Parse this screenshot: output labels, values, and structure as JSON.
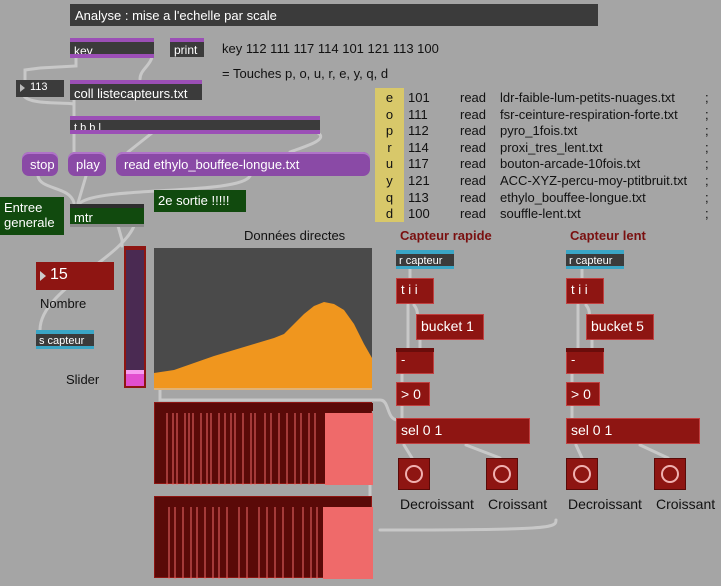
{
  "title": "Analyse : mise a l'echelle par scale",
  "objects": {
    "key": "key",
    "print": "print",
    "number113": "113",
    "coll": "coll listecapteurs.txt",
    "tbbl": "t b b l",
    "stop": "stop",
    "play": "play",
    "read": "read ethylo_bouffee-longue.txt",
    "mtr": "mtr",
    "number15": "15",
    "s_capteur": "s capteur",
    "r_capteur1": "r capteur",
    "r_capteur2": "r capteur",
    "tii1": "t i i",
    "tii2": "t i i",
    "bucket1": "bucket 1",
    "bucket5": "bucket 5",
    "minus1": "-",
    "minus2": "-",
    "gt1": "> 0",
    "gt2": "> 0",
    "sel1": "sel 0 1",
    "sel2": "sel 0 1"
  },
  "comments": {
    "key_codes": "key 112 111 117 114 101 121 113 100",
    "touches": "= Touches p, o, u, r, e, y, q, d",
    "entree_generale": "Entree generale",
    "deuxieme_sortie": "2e sortie !!!!!",
    "donnees_directes": "Données directes",
    "capteur_rapide": "Capteur rapide",
    "capteur_lent": "Capteur lent",
    "nombre": "Nombre",
    "slider": "Slider",
    "decroissant1": "Decroissant",
    "croissant1": "Croissant",
    "decroissant2": "Decroissant",
    "croissant2": "Croissant"
  },
  "keys_column": [
    "e",
    "o",
    "p",
    "r",
    "u",
    "y",
    "q",
    "d"
  ],
  "coll_list": [
    {
      "n": "101",
      "cmd": "read",
      "file": "ldr-faible-lum-petits-nuages.txt",
      "end": ";"
    },
    {
      "n": "111",
      "cmd": "read",
      "file": "fsr-ceinture-respiration-forte.txt",
      "end": ";"
    },
    {
      "n": "112",
      "cmd": "read",
      "file": "pyro_1fois.txt",
      "end": ";"
    },
    {
      "n": "114",
      "cmd": "read",
      "file": "proxi_tres_lent.txt",
      "end": ";"
    },
    {
      "n": "117",
      "cmd": "read",
      "file": "bouton-arcade-10fois.txt",
      "end": ";"
    },
    {
      "n": "121",
      "cmd": "read",
      "file": "ACC-XYZ-percu-moy-ptitbruit.txt",
      "end": ";"
    },
    {
      "n": "113",
      "cmd": "read",
      "file": "ethylo_bouffee-longue.txt",
      "end": ";"
    },
    {
      "n": "100",
      "cmd": "read",
      "file": "souffle-lent.txt",
      "end": ";"
    }
  ],
  "colors": {
    "background": "#a5a5a5",
    "object_red": "#8e1512",
    "message_purple": "#8a4aa6",
    "plot_fill": "#f0961e",
    "plot_bg": "#4a4a4a",
    "key_col_bg": "#d8c86a"
  },
  "slider": {
    "value_fraction": 0.1
  }
}
